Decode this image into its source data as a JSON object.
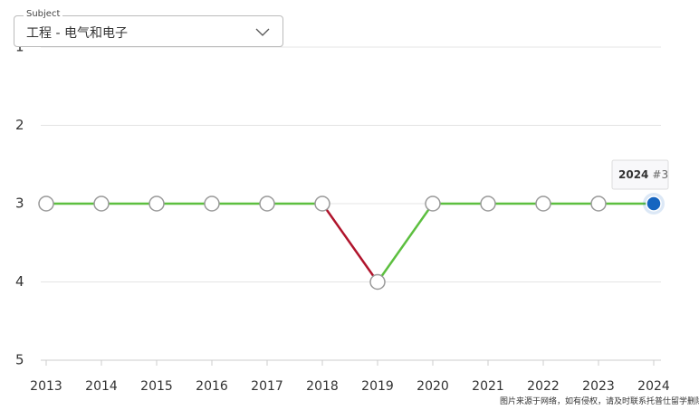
{
  "subject_label": "Subject",
  "subject_value": "工程 - 电气和电子",
  "chart_data": {
    "type": "rank-line",
    "categories": [
      "2013",
      "2014",
      "2015",
      "2016",
      "2017",
      "2018",
      "2019",
      "2020",
      "2021",
      "2022",
      "2023",
      "2024"
    ],
    "values": [
      3,
      3,
      3,
      3,
      3,
      3,
      4,
      3,
      3,
      3,
      3,
      3
    ],
    "ylim": [
      1,
      5
    ],
    "y_inverted": true,
    "yticks": [
      1,
      2,
      3,
      4,
      5
    ],
    "grid": true,
    "color": "#5cbf3f",
    "decline_color": "#b0142c",
    "highlight_color": "#1565c0",
    "highlight_index": 11,
    "tooltip_label": "#3"
  },
  "watermark": "图片来源于网络，如有侵权，请及时联系托普仕留学删除"
}
